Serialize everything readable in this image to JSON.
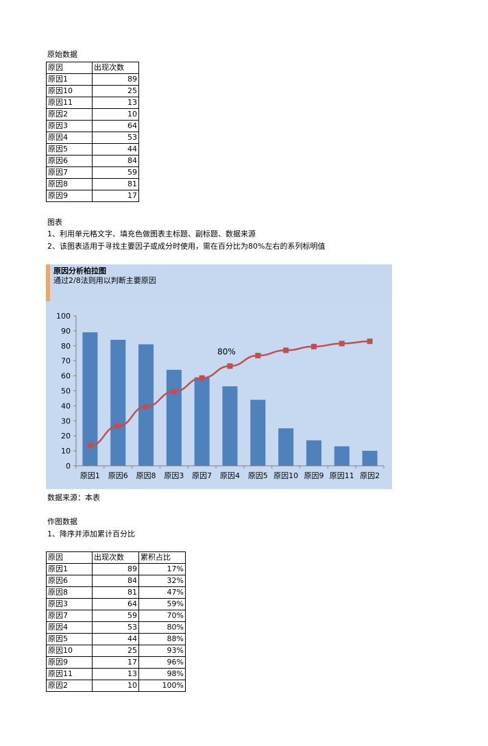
{
  "section1": {
    "title": "原始数据"
  },
  "raw_table": {
    "headers": [
      "原因",
      "出现次数"
    ],
    "rows": [
      [
        "原因1",
        "89"
      ],
      [
        "原因10",
        "25"
      ],
      [
        "原因11",
        "13"
      ],
      [
        "原因2",
        "10"
      ],
      [
        "原因3",
        "64"
      ],
      [
        "原因4",
        "53"
      ],
      [
        "原因5",
        "44"
      ],
      [
        "原因6",
        "84"
      ],
      [
        "原因7",
        "59"
      ],
      [
        "原因8",
        "81"
      ],
      [
        "原因9",
        "17"
      ]
    ]
  },
  "section2": {
    "title": "图表",
    "note1": "1、利用单元格文字、填充色做图表主标题、副标题、数据来源",
    "note2": "2、该图表适用于寻找主要因子或成分时使用，需在百分比为80%左右的系列标明值"
  },
  "chart_header": {
    "title": "原因分析柏拉图",
    "subtitle": "通过2/8法则用以判断主要原因"
  },
  "data_source": "数据来源：本表",
  "section3": {
    "title": "作图数据",
    "note1": "1、降序并添加累计百分比"
  },
  "sorted_table": {
    "headers": [
      "原因",
      "出现次数",
      "累积占比"
    ],
    "rows": [
      [
        "原因1",
        "89",
        "17%"
      ],
      [
        "原因6",
        "84",
        "32%"
      ],
      [
        "原因8",
        "81",
        "47%"
      ],
      [
        "原因3",
        "64",
        "59%"
      ],
      [
        "原因7",
        "59",
        "70%"
      ],
      [
        "原因4",
        "53",
        "80%"
      ],
      [
        "原因5",
        "44",
        "88%"
      ],
      [
        "原因10",
        "25",
        "93%"
      ],
      [
        "原因9",
        "17",
        "96%"
      ],
      [
        "原因11",
        "13",
        "98%"
      ],
      [
        "原因2",
        "10",
        "100%"
      ]
    ]
  },
  "chart_data": {
    "type": "bar",
    "title": "原因分析柏拉图",
    "subtitle": "通过2/8法则用以判断主要原因",
    "categories": [
      "原因1",
      "原因6",
      "原因8",
      "原因3",
      "原因7",
      "原因4",
      "原因5",
      "原因10",
      "原因9",
      "原因11",
      "原因2"
    ],
    "series": [
      {
        "type": "bar",
        "values": [
          89,
          84,
          81,
          64,
          59,
          53,
          44,
          25,
          17,
          13,
          10
        ],
        "color": "#4f81bd"
      },
      {
        "type": "line",
        "values": [
          13.5,
          26.5,
          39.5,
          49.5,
          58.5,
          66.5,
          73.5,
          77,
          79.5,
          81.5,
          83
        ],
        "color": "#c0504d"
      }
    ],
    "ylim": [
      0,
      100
    ],
    "yticks": [
      "0",
      "10",
      "20",
      "30",
      "40",
      "50",
      "60",
      "70",
      "80",
      "90",
      "100"
    ],
    "annotation": {
      "category": "原因4",
      "text": "80%"
    },
    "grid": false,
    "legend": "none"
  }
}
